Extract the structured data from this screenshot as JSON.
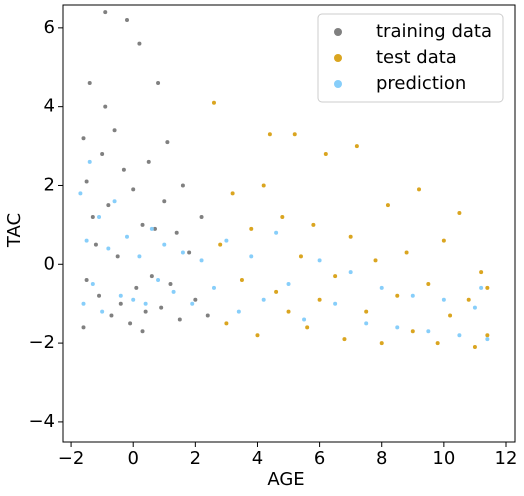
{
  "chart_data": {
    "type": "scatter",
    "x_label": "AGE",
    "y_label": "TAC",
    "xlim": [
      -2.26,
      12.29
    ],
    "ylim": [
      -4.51,
      6.58
    ],
    "xticks": [
      {
        "value": -2,
        "label": "−2"
      },
      0,
      2,
      4,
      6,
      8,
      10,
      12
    ],
    "yticks": [
      {
        "value": -4,
        "label": "−4"
      },
      {
        "value": -2,
        "label": "−2"
      },
      0,
      2,
      4,
      6
    ],
    "legend": "upper right",
    "series": [
      {
        "name": "training data",
        "color": "#808080",
        "x": [
          -1.6,
          -1.5,
          -1.4,
          -1.3,
          -1.2,
          -1.1,
          -1.0,
          -0.9,
          -0.8,
          -0.7,
          -0.6,
          -0.5,
          -0.4,
          -0.3,
          -0.2,
          -0.1,
          0.0,
          0.1,
          0.2,
          0.3,
          0.4,
          0.5,
          0.6,
          0.7,
          0.8,
          0.9,
          1.0,
          1.2,
          1.4,
          1.5,
          1.6,
          1.8,
          2.0,
          2.2,
          2.4,
          -1.6,
          -1.5,
          -0.9,
          0.3,
          1.1
        ],
        "y": [
          3.2,
          2.1,
          4.6,
          1.2,
          0.5,
          -0.8,
          2.8,
          6.4,
          1.5,
          -1.3,
          3.4,
          0.2,
          -1.0,
          2.4,
          6.2,
          -1.5,
          1.9,
          -0.6,
          5.6,
          1.0,
          -1.2,
          2.6,
          -0.3,
          0.9,
          4.6,
          -1.1,
          1.6,
          -0.5,
          0.8,
          -1.4,
          2.0,
          0.3,
          -0.9,
          1.2,
          -1.3,
          -1.6,
          -0.4,
          4.0,
          -1.7,
          3.1
        ]
      },
      {
        "name": "test data",
        "color": "#daa520",
        "x": [
          2.6,
          2.8,
          3.0,
          3.2,
          3.5,
          3.8,
          4.0,
          4.2,
          4.4,
          4.6,
          4.8,
          5.0,
          5.2,
          5.4,
          5.6,
          5.8,
          6.0,
          6.2,
          6.5,
          6.8,
          7.0,
          7.2,
          7.5,
          7.8,
          8.0,
          8.2,
          8.5,
          8.8,
          9.0,
          9.2,
          9.5,
          9.8,
          10.0,
          10.2,
          10.5,
          10.8,
          11.0,
          11.2,
          11.4,
          11.4
        ],
        "y": [
          4.1,
          0.5,
          -1.5,
          1.8,
          -0.4,
          0.9,
          -1.8,
          2.0,
          3.3,
          -0.7,
          1.2,
          -1.2,
          3.3,
          0.2,
          -1.6,
          1.0,
          -0.9,
          2.8,
          -0.3,
          -1.9,
          0.7,
          3.0,
          -1.2,
          0.1,
          -2.0,
          1.5,
          -0.8,
          0.3,
          -1.7,
          1.9,
          -0.5,
          -2.0,
          0.6,
          -1.3,
          1.3,
          -0.9,
          -2.1,
          -0.2,
          -1.8,
          -0.6
        ]
      },
      {
        "name": "prediction",
        "color": "#87cefa",
        "x": [
          -1.7,
          -1.6,
          -1.5,
          -1.4,
          -1.3,
          -1.1,
          -1.0,
          -0.8,
          -0.6,
          -0.4,
          -0.2,
          0.0,
          0.2,
          0.4,
          0.6,
          0.8,
          1.0,
          1.3,
          1.6,
          1.9,
          2.2,
          2.6,
          3.0,
          3.4,
          3.8,
          4.2,
          4.6,
          5.0,
          5.5,
          6.0,
          6.5,
          7.0,
          7.5,
          8.0,
          8.5,
          9.0,
          9.5,
          10.0,
          10.5,
          11.0,
          11.4,
          11.2
        ],
        "y": [
          1.8,
          -1.0,
          0.6,
          2.6,
          -0.5,
          1.2,
          -1.2,
          0.4,
          1.6,
          -0.8,
          0.7,
          -0.9,
          0.2,
          -1.0,
          0.9,
          -0.4,
          0.5,
          -0.7,
          0.3,
          -1.0,
          0.1,
          -0.6,
          0.6,
          -1.2,
          0.2,
          -0.9,
          0.8,
          -0.5,
          -1.4,
          0.1,
          -1.0,
          -0.2,
          -1.5,
          -0.6,
          -1.6,
          -0.8,
          -1.7,
          -0.9,
          -1.8,
          -1.1,
          -1.9,
          -0.6
        ]
      }
    ]
  }
}
